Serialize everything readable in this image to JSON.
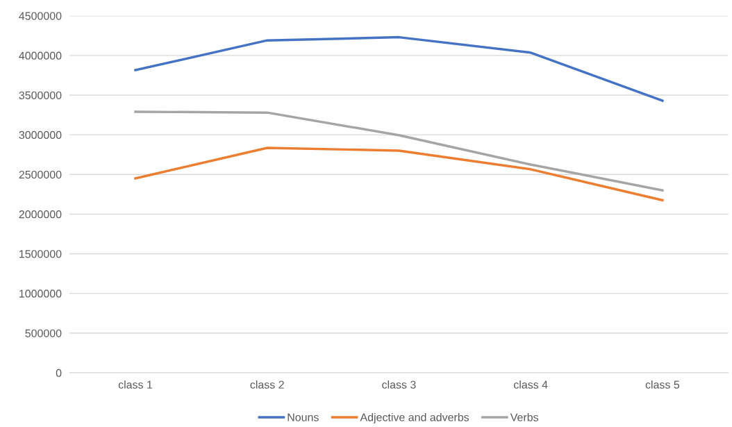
{
  "chart_data": {
    "type": "line",
    "categories": [
      "class 1",
      "class 2",
      "class 3",
      "class 4",
      "class 5"
    ],
    "series": [
      {
        "name": "Nouns",
        "color": "#4472c4",
        "values": [
          3815000,
          4190000,
          4230000,
          4035000,
          3430000
        ]
      },
      {
        "name": "Adjective and adverbs",
        "color": "#ed7d31",
        "values": [
          2450000,
          2835000,
          2800000,
          2565000,
          2175000
        ]
      },
      {
        "name": "Verbs",
        "color": "#a5a5a5",
        "values": [
          3290000,
          3280000,
          2995000,
          2625000,
          2300000
        ]
      }
    ],
    "ylim": [
      0,
      4500000
    ],
    "yticks": [
      0,
      500000,
      1000000,
      1500000,
      2000000,
      2500000,
      3000000,
      3500000,
      4000000,
      4500000
    ],
    "grid": "y",
    "legend": "bottom",
    "marker": "none",
    "line_style": "solid"
  }
}
